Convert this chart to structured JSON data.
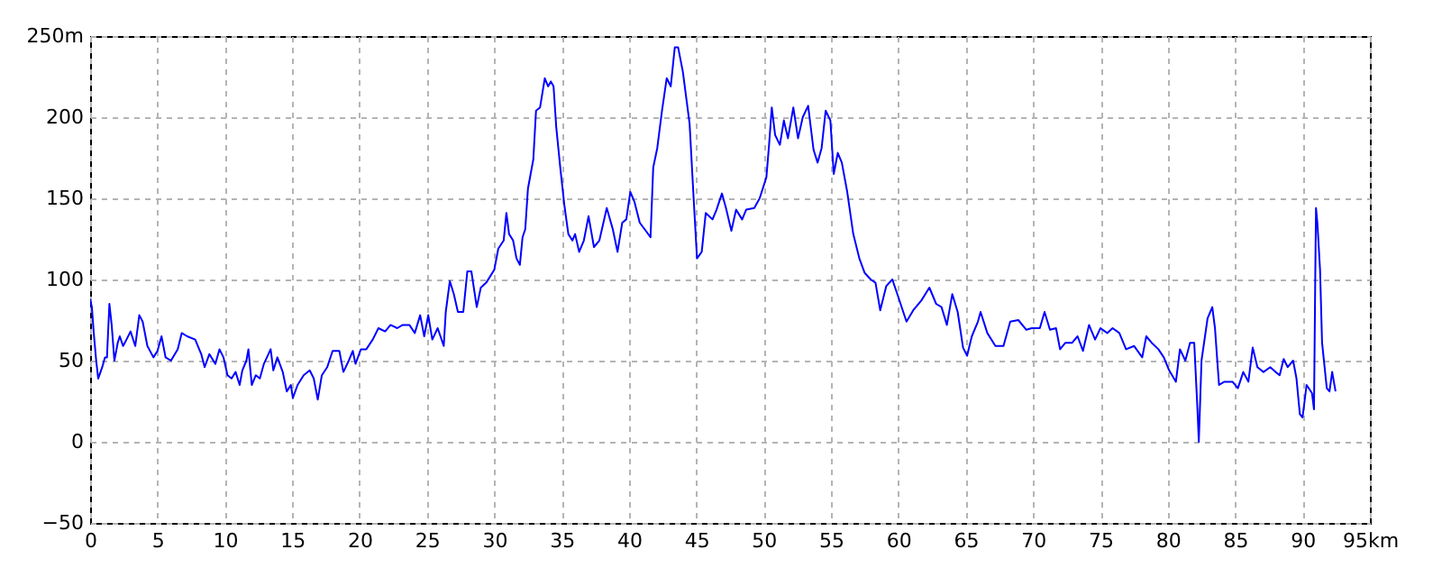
{
  "chart_data": {
    "type": "line",
    "x": [
      0,
      0.13,
      0.27,
      0.45,
      0.6,
      0.9,
      1.1,
      1.25,
      1.43,
      1.6,
      1.8,
      2.05,
      2.2,
      2.45,
      2.7,
      3.0,
      3.35,
      3.65,
      3.9,
      4.25,
      4.7,
      5.0,
      5.3,
      5.6,
      6.0,
      6.5,
      6.8,
      7.2,
      7.8,
      8.25,
      8.5,
      8.85,
      9.3,
      9.6,
      9.9,
      10.2,
      10.5,
      10.8,
      11.1,
      11.3,
      11.6,
      11.75,
      12.0,
      12.3,
      12.6,
      12.9,
      13.4,
      13.6,
      13.9,
      14.3,
      14.6,
      14.9,
      15.05,
      15.4,
      15.85,
      16.3,
      16.6,
      16.9,
      17.2,
      17.6,
      18.0,
      18.5,
      18.8,
      19.2,
      19.5,
      19.7,
      20.1,
      20.5,
      20.98,
      21.4,
      21.9,
      22.3,
      22.8,
      23.2,
      23.7,
      24.1,
      24.5,
      24.8,
      25.1,
      25.4,
      25.8,
      26.25,
      26.4,
      26.7,
      27.0,
      27.3,
      27.7,
      28.0,
      28.3,
      28.7,
      29.0,
      29.4,
      30,
      30.3,
      30.7,
      30.9,
      31.1,
      31.4,
      31.65,
      31.9,
      32.1,
      32.3,
      32.5,
      32.9,
      33.1,
      33.4,
      33.75,
      34.0,
      34.2,
      34.4,
      34.6,
      34.9,
      35.2,
      35.5,
      35.8,
      36.0,
      36.3,
      36.65,
      37.0,
      37.4,
      37.8,
      38.35,
      38.8,
      39.15,
      39.5,
      39.8,
      40.1,
      40.4,
      40.8,
      41.25,
      41.6,
      41.8,
      42.1,
      42.45,
      42.8,
      43.1,
      43.4,
      43.65,
      44.0,
      44.5,
      44.8,
      45.05,
      45.4,
      45.7,
      46.2,
      46.5,
      46.9,
      47.2,
      47.6,
      47.95,
      48.4,
      48.7,
      49.3,
      49.7,
      50.2,
      50.4,
      50.6,
      50.85,
      51.2,
      51.5,
      51.8,
      52.2,
      52.55,
      52.9,
      53.3,
      53.7,
      54.0,
      54.3,
      54.6,
      54.95,
      55.2,
      55.5,
      55.8,
      56.2,
      56.65,
      57.1,
      57.5,
      57.95,
      58.3,
      58.65,
      59.1,
      59.55,
      60.0,
      60.6,
      61.1,
      61.7,
      62.3,
      62.8,
      63.2,
      63.6,
      64.0,
      64.4,
      64.8,
      65.1,
      65.45,
      65.9,
      66.1,
      66.6,
      67.2,
      67.8,
      68.3,
      68.9,
      69.5,
      69.9,
      70.5,
      70.85,
      71.25,
      71.7,
      72.0,
      72.4,
      72.9,
      73.3,
      73.7,
      74.15,
      74.6,
      75.0,
      75.5,
      75.9,
      76.4,
      76.9,
      77.5,
      78.1,
      78.4,
      78.8,
      79.3,
      79.7,
      80.1,
      80.6,
      80.9,
      81.3,
      81.65,
      81.96,
      82.2,
      82.3,
      82.5,
      82.95,
      83.3,
      83.5,
      83.8,
      84.2,
      84.8,
      85.2,
      85.6,
      85.98,
      86.3,
      86.65,
      87.1,
      87.6,
      88.0,
      88.3,
      88.6,
      88.9,
      89.3,
      89.55,
      89.8,
      90.0,
      90.3,
      90.7,
      90.85,
      90.95,
      91.0,
      91.1,
      91.3,
      91.45,
      91.8,
      92.0,
      92.2,
      92.45
    ],
    "series": [
      {
        "color": "#0000ff",
        "values": [
          88,
          83,
          67,
          50,
          39,
          46,
          52,
          52,
          85,
          72,
          50,
          61,
          65,
          59,
          63,
          68,
          59,
          78,
          74,
          59,
          52,
          56,
          65,
          52,
          50,
          57,
          67,
          65,
          63,
          54,
          46,
          54,
          48,
          57,
          52,
          41,
          39,
          43,
          35,
          44,
          50,
          57,
          35,
          41,
          39,
          48,
          57,
          44,
          52,
          43,
          31,
          35,
          27,
          35,
          41,
          44,
          39,
          26,
          41,
          46,
          56,
          56,
          43,
          50,
          56,
          48,
          57,
          57,
          63,
          70,
          68,
          72,
          70,
          72,
          72,
          67,
          78,
          65,
          78,
          63,
          70,
          59,
          80,
          99,
          91,
          80,
          80,
          105,
          105,
          83,
          95,
          98,
          106,
          119,
          124,
          141,
          128,
          124,
          113,
          109,
          126,
          131,
          156,
          174,
          204,
          206,
          224,
          219,
          222,
          219,
          194,
          169,
          146,
          128,
          124,
          128,
          117,
          124,
          139,
          120,
          124,
          144,
          131,
          117,
          135,
          137,
          154,
          148,
          135,
          130,
          126,
          169,
          181,
          204,
          224,
          219,
          243,
          243,
          228,
          196,
          150,
          113,
          117,
          141,
          137,
          143,
          153,
          144,
          130,
          143,
          137,
          143,
          144,
          150,
          163,
          183,
          206,
          189,
          183,
          198,
          187,
          206,
          187,
          200,
          207,
          180,
          172,
          181,
          204,
          198,
          165,
          178,
          172,
          154,
          128,
          113,
          104,
          100,
          98,
          81,
          96,
          100,
          89,
          74,
          81,
          87,
          95,
          85,
          83,
          72,
          91,
          80,
          58,
          53,
          65,
          74,
          80,
          67,
          59,
          59,
          74,
          75,
          69,
          70,
          70,
          80,
          69,
          70,
          57,
          61,
          61,
          65,
          56,
          72,
          63,
          70,
          67,
          70,
          67,
          57,
          59,
          52,
          65,
          61,
          57,
          52,
          44,
          37,
          57,
          50,
          61,
          61,
          20,
          0,
          50,
          76,
          83,
          70,
          35,
          37,
          37,
          33,
          43,
          37,
          58,
          46,
          43,
          46,
          43,
          41,
          51,
          46,
          50,
          39,
          17,
          15,
          35,
          30,
          20,
          106,
          144,
          135,
          106,
          61,
          33,
          31,
          43,
          31
        ]
      }
    ],
    "xlim": [
      0,
      95
    ],
    "xticks": [
      0,
      5,
      10,
      15,
      20,
      25,
      30,
      35,
      40,
      45,
      50,
      55,
      60,
      65,
      70,
      75,
      80,
      85,
      90,
      {
        "value": 95,
        "label": "95km"
      }
    ],
    "ylim": [
      -50,
      250
    ],
    "yticks": [
      -50,
      0,
      50,
      100,
      150,
      200,
      {
        "value": 250,
        "label": "250m"
      }
    ],
    "grid": true,
    "line_style": "solid"
  }
}
